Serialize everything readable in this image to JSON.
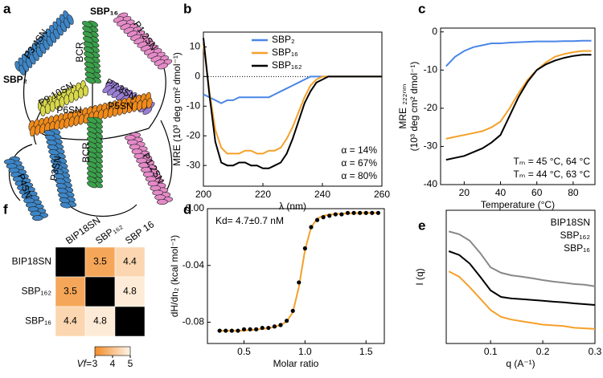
{
  "panel_labels": [
    "a",
    "b",
    "c",
    "d",
    "e",
    "f"
  ],
  "diagram": {
    "title_top": "SBP₁₆",
    "title_left": "SBP₂",
    "labels": [
      "P3:4SN",
      "P1:2SN",
      "BCR",
      "P9:10SN",
      "P7:8SN",
      "P6SN",
      "P5SN",
      "P4SN",
      "P3SN",
      "BCR",
      "P1:2SN"
    ]
  },
  "chart_data": [
    {
      "type": "line",
      "xlabel": "λ (nm)",
      "ylabel": [
        "MRE (10³ deg cm² dmol⁻¹)"
      ],
      "x": [
        200,
        202,
        204,
        206,
        208,
        210,
        212,
        214,
        216,
        218,
        220,
        222,
        224,
        226,
        228,
        230,
        232,
        234,
        236,
        238,
        240,
        242,
        244,
        246,
        248,
        250,
        252,
        254,
        256,
        258,
        260
      ],
      "series": [
        {
          "name": "SBP₂",
          "color": "#4a86e8",
          "values": [
            -6,
            -7,
            -8,
            -9,
            -8,
            -8,
            -7,
            -7,
            -7,
            -7,
            -7,
            -7,
            -6,
            -5,
            -4,
            -3,
            -2,
            -1,
            0,
            0,
            0,
            0,
            0,
            0,
            0,
            0,
            0,
            0,
            0,
            0,
            0
          ]
        },
        {
          "name": "SBP₁₆",
          "color": "#f5a02a",
          "values": [
            11,
            -5,
            -18,
            -24,
            -26,
            -26,
            -26,
            -25,
            -25,
            -26,
            -26,
            -25,
            -25,
            -24,
            -21,
            -17,
            -12,
            -7,
            -3,
            -1,
            0,
            0,
            0,
            0,
            0,
            0,
            0,
            0,
            0,
            0,
            0
          ]
        },
        {
          "name": "SBP₁₆₂",
          "color": "#000000",
          "values": [
            13,
            -6,
            -22,
            -29,
            -30,
            -30,
            -29,
            -29,
            -30,
            -30,
            -31,
            -31,
            -30,
            -29,
            -26,
            -21,
            -15,
            -9,
            -5,
            -2,
            -1,
            0,
            0,
            0,
            0,
            0,
            0,
            0,
            0,
            0,
            0
          ]
        }
      ],
      "xlim": [
        200,
        260
      ],
      "xticks": [
        200,
        220,
        240,
        260
      ],
      "ylim": [
        -37,
        15
      ],
      "yticks": [
        -30,
        -20,
        -10,
        0,
        10
      ],
      "zero_line": true,
      "legend": "upper right",
      "annotations": [
        {
          "text": "α = 14%",
          "color": "#4a86e8"
        },
        {
          "text": "α = 67%",
          "color": "#f5a02a"
        },
        {
          "text": "α = 80%",
          "color": "#000000"
        }
      ]
    },
    {
      "type": "line",
      "xlabel": "Temperature (°C)",
      "ylabel": [
        "MRE ₂₂₂ₙₘ",
        "(10³ deg cm² dmol⁻¹)"
      ],
      "x": [
        10,
        15,
        20,
        25,
        30,
        35,
        40,
        45,
        50,
        55,
        60,
        65,
        70,
        75,
        80,
        85,
        90
      ],
      "series": [
        {
          "color": "#4a86e8",
          "values": [
            -9,
            -6.5,
            -5,
            -4,
            -3.5,
            -3,
            -3,
            -2.8,
            -2.7,
            -2.6,
            -2.5,
            -2.5,
            -2.5,
            -2.4,
            -2.4,
            -2.3,
            -2.3
          ]
        },
        {
          "color": "#f5a02a",
          "values": [
            -28,
            -27.5,
            -27,
            -26.5,
            -26,
            -25,
            -23.5,
            -20,
            -16,
            -12.5,
            -10,
            -8,
            -6.5,
            -5.8,
            -5.3,
            -5.0,
            -5.0
          ]
        },
        {
          "color": "#000000",
          "values": [
            -33.5,
            -33,
            -32.5,
            -31.5,
            -30.5,
            -29,
            -27,
            -22,
            -17,
            -13,
            -10,
            -8.5,
            -7.5,
            -6.8,
            -6.3,
            -6.0,
            -6.0
          ]
        }
      ],
      "xlim": [
        7,
        92
      ],
      "xticks": [
        20,
        40,
        60,
        80
      ],
      "ylim": [
        -40,
        1
      ],
      "yticks": [
        -40,
        -30,
        -20,
        -10,
        0
      ],
      "annotations": [
        {
          "text": "Tₘ = 45 °C, 64 °C",
          "color": "#000000"
        },
        {
          "text": "Tₘ = 44 °C, 63 °C",
          "color": "#f5a02a"
        }
      ]
    },
    {
      "type": "scatter",
      "xlabel": "Molar ratio",
      "ylabel": [
        "dH/dn₂ (kcal mol⁻¹)"
      ],
      "x": [
        0.3,
        0.35,
        0.4,
        0.45,
        0.5,
        0.55,
        0.6,
        0.65,
        0.7,
        0.75,
        0.8,
        0.85,
        0.9,
        0.95,
        1.0,
        1.05,
        1.1,
        1.15,
        1.2,
        1.25,
        1.3,
        1.35,
        1.4,
        1.45,
        1.5,
        1.55,
        1.6
      ],
      "series": [
        {
          "color": "#f5a02a",
          "style": "line",
          "values": [
            -0.086,
            -0.086,
            -0.086,
            -0.086,
            -0.0858,
            -0.0855,
            -0.0852,
            -0.0847,
            -0.0842,
            -0.0833,
            -0.082,
            -0.0795,
            -0.073,
            -0.055,
            -0.029,
            -0.013,
            -0.007,
            -0.005,
            -0.0042,
            -0.0038,
            -0.0035,
            -0.0033,
            -0.0032,
            -0.0031,
            -0.003,
            -0.003,
            -0.003
          ]
        },
        {
          "color": "#000000",
          "style": "markers",
          "values": [
            -0.086,
            -0.086,
            -0.086,
            -0.086,
            -0.085,
            -0.085,
            -0.085,
            -0.084,
            -0.084,
            -0.083,
            -0.082,
            -0.079,
            -0.072,
            -0.052,
            -0.028,
            -0.013,
            -0.008,
            -0.006,
            -0.005,
            -0.004,
            -0.004,
            -0.003,
            -0.003,
            -0.003,
            -0.003,
            -0.003,
            -0.003
          ]
        }
      ],
      "xlim": [
        0.2,
        1.65
      ],
      "xticks": [
        0.5,
        {
          "value": 1.0,
          "label": "1.0"
        },
        1.5
      ],
      "ylim": [
        -0.095,
        0
      ],
      "yticks": [
        {
          "value": 0,
          "label": "0.00"
        },
        -0.04,
        -0.08
      ],
      "annotations": [
        {
          "text": "Kd= 4.7±0.7 nM",
          "color": "#000000"
        }
      ]
    },
    {
      "type": "scatter",
      "xlabel": "q (A⁻¹)",
      "ylabel": [
        "I (q)"
      ],
      "ylog": true,
      "legend": "upper right",
      "legend_swatch": false,
      "x": [
        0.02,
        0.04,
        0.06,
        0.08,
        0.1,
        0.12,
        0.14,
        0.16,
        0.18,
        0.2,
        0.22,
        0.24,
        0.26,
        0.28,
        0.3
      ],
      "series": [
        {
          "name": "BIP18SN",
          "color": "#888888",
          "style": "line",
          "values": [
            1.6,
            1.26,
            0.72,
            0.25,
            0.072,
            0.045,
            0.036,
            0.032,
            0.028,
            0.024,
            0.021,
            0.019,
            0.017,
            0.016,
            0.014
          ]
        },
        {
          "name": "SBP₁₆₂",
          "color": "#000000",
          "style": "line",
          "values": [
            0.29,
            0.21,
            0.1,
            0.032,
            0.0098,
            0.0056,
            0.0049,
            0.0046,
            0.0043,
            0.004,
            0.0037,
            0.0035,
            0.0032,
            0.003,
            0.0028
          ]
        },
        {
          "name": "SBP₁₆",
          "color": "#f5a02a",
          "style": "line",
          "values": [
            0.051,
            0.032,
            0.013,
            0.0049,
            0.0018,
            0.001,
            0.00079,
            0.00068,
            0.00059,
            0.00051,
            0.00048,
            0.00045,
            0.00039,
            0.00037,
            0.00035
          ]
        }
      ],
      "xlim": [
        0.015,
        0.3
      ],
      "xticks": [
        0.1,
        0.2,
        0.3
      ],
      "ylim": [
        0.0001,
        10
      ]
    },
    {
      "type": "heatmap",
      "rows": [
        "BIP18SN",
        "SBP₁₆₂",
        "SBP₁₆"
      ],
      "columns": [
        "BIP18SN",
        "SBP₁₆₂",
        "SBP 16"
      ],
      "values": [
        [
          null,
          3.5,
          4.4
        ],
        [
          3.5,
          null,
          4.8
        ],
        [
          4.4,
          4.8,
          null
        ]
      ],
      "null_color": "#000000",
      "cmap": [
        "#f28c28",
        "#fff5ea"
      ],
      "clim": [
        3,
        5
      ],
      "colorbar": {
        "label": "Vf=",
        "ticks": [
          3,
          4,
          5
        ]
      }
    }
  ]
}
